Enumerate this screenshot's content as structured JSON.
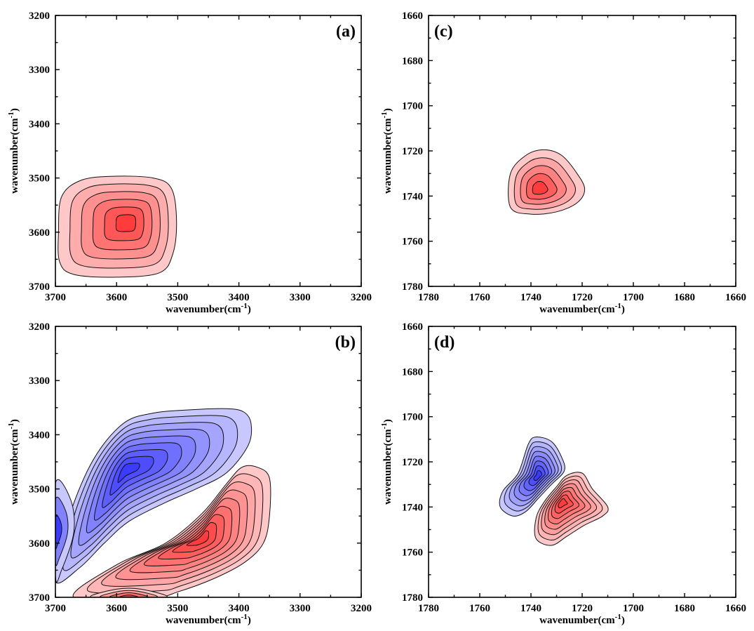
{
  "chart_data": [
    {
      "panel": "(a)",
      "type": "contour",
      "xlabel": "wavenumber(cm-1)",
      "ylabel": "wavenumber(cm-1)",
      "xlim": [
        3700,
        3200
      ],
      "ylim": [
        3200,
        3700
      ],
      "y_inverted": true,
      "xticks": [
        3700,
        3600,
        3500,
        3400,
        3300,
        3200
      ],
      "yticks": [
        3200,
        3300,
        3400,
        3500,
        3600,
        3700
      ],
      "peaks": [
        {
          "sign": "positive",
          "x": 3582,
          "y": 3582,
          "levels": 6,
          "color": "#ff3b3b",
          "outer": [
            [
              3695,
              3600
            ],
            [
              3690,
              3535
            ],
            [
              3660,
              3505
            ],
            [
              3610,
              3497
            ],
            [
              3540,
              3500
            ],
            [
              3510,
              3520
            ],
            [
              3502,
              3580
            ],
            [
              3508,
              3640
            ],
            [
              3530,
              3675
            ],
            [
              3600,
              3683
            ],
            [
              3670,
              3678
            ],
            [
              3693,
              3655
            ]
          ]
        }
      ]
    },
    {
      "panel": "(b)",
      "type": "contour",
      "xlabel": "wavenumber(cm-1)",
      "ylabel": "wavenumber(cm-1)",
      "xlim": [
        3700,
        3200
      ],
      "ylim": [
        3200,
        3700
      ],
      "y_inverted": true,
      "xticks": [
        3700,
        3600,
        3500,
        3400,
        3300,
        3200
      ],
      "yticks": [
        3200,
        3300,
        3400,
        3500,
        3600,
        3700
      ],
      "peaks": [
        {
          "sign": "negative",
          "x": 3585,
          "y": 3465,
          "levels": 9,
          "color": "#3b3bff",
          "outer": [
            [
              3700,
              3670
            ],
            [
              3680,
              3560
            ],
            [
              3640,
              3450
            ],
            [
              3590,
              3380
            ],
            [
              3540,
              3360
            ],
            [
              3480,
              3354
            ],
            [
              3420,
              3352
            ],
            [
              3392,
              3358
            ],
            [
              3380,
              3380
            ],
            [
              3385,
              3420
            ],
            [
              3420,
              3470
            ],
            [
              3470,
              3500
            ],
            [
              3520,
              3525
            ],
            [
              3580,
              3560
            ],
            [
              3620,
              3600
            ],
            [
              3660,
              3645
            ]
          ]
        },
        {
          "sign": "negative",
          "x": 3700,
          "y": 3580,
          "levels": 3,
          "color": "#3b3bff",
          "outer": [
            [
              3700,
              3490
            ],
            [
              3675,
              3520
            ],
            [
              3670,
              3580
            ],
            [
              3690,
              3650
            ],
            [
              3700,
              3660
            ]
          ]
        },
        {
          "sign": "positive",
          "x": 3462,
          "y": 3592,
          "levels": 9,
          "color": "#ff3b3b",
          "outer": [
            [
              3670,
              3700
            ],
            [
              3600,
              3640
            ],
            [
              3520,
              3600
            ],
            [
              3460,
              3545
            ],
            [
              3420,
              3490
            ],
            [
              3395,
              3460
            ],
            [
              3370,
              3460
            ],
            [
              3350,
              3480
            ],
            [
              3350,
              3550
            ],
            [
              3360,
              3600
            ],
            [
              3390,
              3635
            ],
            [
              3440,
              3665
            ],
            [
              3500,
              3690
            ],
            [
              3540,
              3700
            ]
          ]
        },
        {
          "sign": "positive",
          "x": 3580,
          "y": 3700,
          "levels": 4,
          "color": "#ff3b3b",
          "outer": [
            [
              3640,
              3700
            ],
            [
              3600,
              3685
            ],
            [
              3560,
              3685
            ],
            [
              3520,
              3700
            ]
          ]
        }
      ]
    },
    {
      "panel": "(c)",
      "type": "contour",
      "xlabel": "wavenumber(cm-1)",
      "ylabel": "wavenumber(cm-1)",
      "xlim": [
        1780,
        1660
      ],
      "ylim": [
        1660,
        1780
      ],
      "y_inverted": true,
      "xticks": [
        1780,
        1760,
        1740,
        1720,
        1700,
        1680,
        1660
      ],
      "yticks": [
        1660,
        1680,
        1700,
        1720,
        1740,
        1760,
        1780
      ],
      "peaks": [
        {
          "sign": "positive",
          "x": 1737,
          "y": 1737,
          "levels": 5,
          "color": "#ff3b3b",
          "outer": [
            [
              1748,
              1745
            ],
            [
              1748,
              1730
            ],
            [
              1742,
              1722
            ],
            [
              1735,
              1719.5
            ],
            [
              1728,
              1722
            ],
            [
              1722,
              1730
            ],
            [
              1719,
              1737
            ],
            [
              1722,
              1743
            ],
            [
              1730,
              1747
            ],
            [
              1740,
              1748
            ]
          ]
        }
      ]
    },
    {
      "panel": "(d)",
      "type": "contour",
      "xlabel": "wavenumber(cm-1)",
      "ylabel": "wavenumber(cm-1)",
      "xlim": [
        1780,
        1660
      ],
      "ylim": [
        1660,
        1780
      ],
      "y_inverted": true,
      "xticks": [
        1780,
        1760,
        1740,
        1720,
        1700,
        1680,
        1660
      ],
      "yticks": [
        1660,
        1680,
        1700,
        1720,
        1740,
        1760,
        1780
      ],
      "peaks": [
        {
          "sign": "negative",
          "x": 1737,
          "y": 1726,
          "levels": 8,
          "color": "#3b3bff",
          "outer": [
            [
              1752,
              1740
            ],
            [
              1751,
              1733
            ],
            [
              1745,
              1725
            ],
            [
              1741,
              1712
            ],
            [
              1738,
              1709
            ],
            [
              1732,
              1711
            ],
            [
              1728,
              1718
            ],
            [
              1727,
              1724
            ],
            [
              1732,
              1730
            ],
            [
              1737,
              1736
            ],
            [
              1742,
              1742
            ],
            [
              1747,
              1744
            ]
          ]
        },
        {
          "sign": "positive",
          "x": 1728,
          "y": 1738,
          "levels": 8,
          "color": "#ff3b3b",
          "outer": [
            [
              1738,
              1754
            ],
            [
              1738,
              1745
            ],
            [
              1735,
              1738
            ],
            [
              1730,
              1731
            ],
            [
              1726,
              1726
            ],
            [
              1720,
              1725
            ],
            [
              1716,
              1732
            ],
            [
              1710,
              1740
            ],
            [
              1712,
              1744
            ],
            [
              1719,
              1748
            ],
            [
              1726,
              1753
            ],
            [
              1732,
              1757
            ]
          ]
        }
      ]
    }
  ]
}
